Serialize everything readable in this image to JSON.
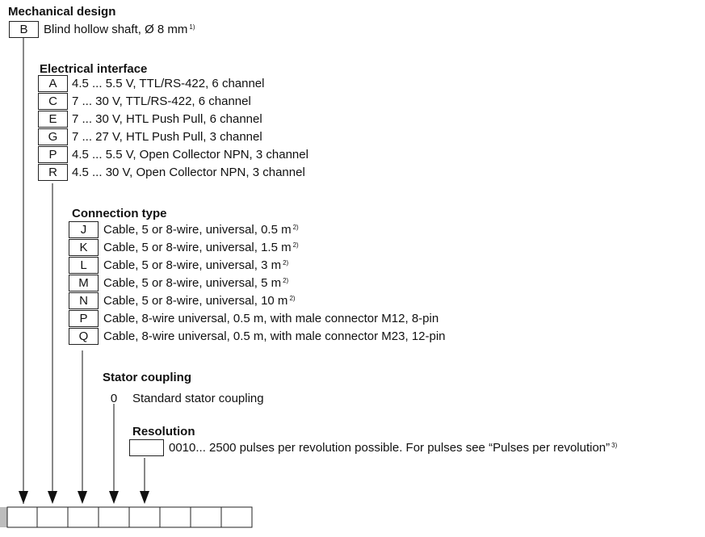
{
  "mechanical": {
    "heading": "Mechanical design",
    "items": [
      {
        "code": "B",
        "text": "Blind hollow shaft, Ø 8 mm",
        "note": "1)"
      }
    ]
  },
  "electrical": {
    "heading": "Electrical interface",
    "items": [
      {
        "code": "A",
        "text": "4.5 ... 5.5 V, TTL/RS-422, 6 channel"
      },
      {
        "code": "C",
        "text": "7 ... 30 V, TTL/RS-422, 6 channel"
      },
      {
        "code": "E",
        "text": "7 ... 30 V, HTL Push Pull, 6 channel"
      },
      {
        "code": "G",
        "text": "7 ... 27 V, HTL Push Pull, 3 channel"
      },
      {
        "code": "P",
        "text": "4.5 ... 5.5 V, Open Collector NPN, 3 channel"
      },
      {
        "code": "R",
        "text": "4.5 ... 30 V, Open Collector NPN, 3 channel"
      }
    ]
  },
  "connection": {
    "heading": "Connection type",
    "items": [
      {
        "code": "J",
        "text": "Cable, 5 or 8-wire, universal, 0.5 m",
        "note": "2)"
      },
      {
        "code": "K",
        "text": "Cable, 5 or 8-wire, universal, 1.5 m",
        "note": "2)"
      },
      {
        "code": "L",
        "text": "Cable, 5 or 8-wire, universal, 3 m",
        "note": "2)"
      },
      {
        "code": "M",
        "text": "Cable, 5 or 8-wire, universal, 5 m",
        "note": "2)"
      },
      {
        "code": "N",
        "text": "Cable, 5 or 8-wire, universal, 10 m",
        "note": "2)"
      },
      {
        "code": "P",
        "text": "Cable, 8-wire universal, 0.5 m, with male connector M12, 8-pin"
      },
      {
        "code": "Q",
        "text": "Cable, 8-wire universal, 0.5 m, with male connector M23, 12-pin"
      }
    ]
  },
  "stator": {
    "heading": "Stator coupling",
    "items": [
      {
        "code": "0",
        "text": "Standard stator coupling"
      }
    ]
  },
  "resolution": {
    "heading": "Resolution",
    "items": [
      {
        "code": "",
        "text": "0010... 2500 pulses per revolution possible. For pulses see “Pulses per revolution”",
        "note": "3)"
      }
    ]
  },
  "code_cells": 8
}
